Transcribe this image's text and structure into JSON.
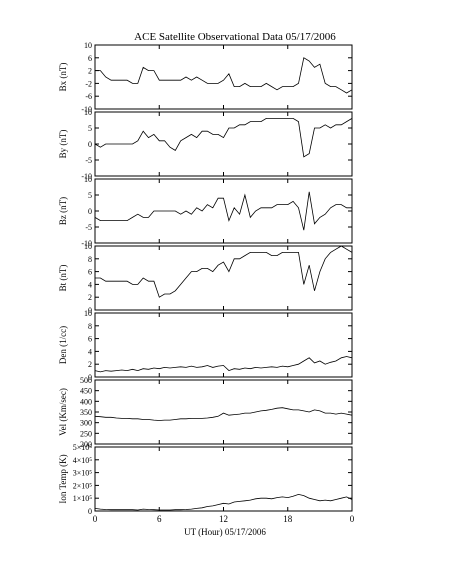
{
  "chart_data": [
    {
      "type": "line",
      "title": "ACE Satellite Observational Data   05/17/2006",
      "ylabel": "Bx (nT)",
      "ylim": [
        -10,
        10
      ],
      "yticks": [
        -10,
        -6,
        -2,
        2,
        6,
        10
      ],
      "xlim": [
        0,
        24
      ],
      "x": [
        0,
        0.5,
        1,
        1.5,
        2,
        2.5,
        3,
        3.5,
        4,
        4.5,
        5,
        5.5,
        6,
        6.5,
        7,
        7.5,
        8,
        8.5,
        9,
        9.5,
        10,
        10.5,
        11,
        11.5,
        12,
        12.5,
        13,
        13.5,
        14,
        14.5,
        15,
        15.5,
        16,
        16.5,
        17,
        17.5,
        18,
        18.5,
        19,
        19.5,
        20,
        20.5,
        21,
        21.5,
        22,
        22.5,
        23,
        23.5,
        24
      ],
      "values": [
        2,
        2,
        0,
        -1,
        -1,
        -1,
        -1,
        -2,
        -2,
        3,
        2,
        2,
        -1,
        -1,
        -1,
        -1,
        -1,
        0,
        -1,
        0,
        -1,
        -2,
        -2,
        -2,
        -1,
        1,
        -3,
        -3,
        -2,
        -3,
        -3,
        -3,
        -2,
        -3,
        -4,
        -3,
        -3,
        -3,
        -2,
        6,
        5,
        3,
        4,
        -2,
        -3,
        -3,
        -4,
        -5,
        -4
      ]
    },
    {
      "type": "line",
      "ylabel": "By (nT)",
      "ylim": [
        -10,
        10
      ],
      "yticks": [
        -10,
        -5,
        0,
        5,
        10
      ],
      "xlim": [
        0,
        24
      ],
      "x": [
        0,
        0.5,
        1,
        1.5,
        2,
        2.5,
        3,
        3.5,
        4,
        4.5,
        5,
        5.5,
        6,
        6.5,
        7,
        7.5,
        8,
        8.5,
        9,
        9.5,
        10,
        10.5,
        11,
        11.5,
        12,
        12.5,
        13,
        13.5,
        14,
        14.5,
        15,
        15.5,
        16,
        16.5,
        17,
        17.5,
        18,
        18.5,
        19,
        19.5,
        20,
        20.5,
        21,
        21.5,
        22,
        22.5,
        23,
        23.5,
        24
      ],
      "values": [
        0,
        -1,
        0,
        0,
        0,
        0,
        0,
        0,
        1,
        4,
        2,
        3,
        1,
        1,
        -1,
        -2,
        1,
        2,
        3,
        2,
        4,
        4,
        3,
        3,
        2,
        5,
        5,
        6,
        6,
        7,
        7,
        7,
        8,
        8,
        8,
        8,
        8,
        8,
        7,
        -4,
        -3,
        5,
        5,
        6,
        5,
        6,
        6,
        7,
        8
      ]
    },
    {
      "type": "line",
      "ylabel": "Bz (nT)",
      "ylim": [
        -10,
        10
      ],
      "yticks": [
        -10,
        -5,
        0,
        5,
        10
      ],
      "xlim": [
        0,
        24
      ],
      "x": [
        0,
        0.5,
        1,
        1.5,
        2,
        2.5,
        3,
        3.5,
        4,
        4.5,
        5,
        5.5,
        6,
        6.5,
        7,
        7.5,
        8,
        8.5,
        9,
        9.5,
        10,
        10.5,
        11,
        11.5,
        12,
        12.5,
        13,
        13.5,
        14,
        14.5,
        15,
        15.5,
        16,
        16.5,
        17,
        17.5,
        18,
        18.5,
        19,
        19.5,
        20,
        20.5,
        21,
        21.5,
        22,
        22.5,
        23,
        23.5,
        24
      ],
      "values": [
        -2,
        -3,
        -3,
        -3,
        -3,
        -3,
        -3,
        -2,
        -1,
        -2,
        -2,
        0,
        0,
        0,
        0,
        0,
        -1,
        0,
        -1,
        1,
        0,
        2,
        1,
        4,
        4,
        -3,
        1,
        -1,
        5,
        -2,
        0,
        1,
        1,
        1,
        2,
        2,
        2,
        3,
        1,
        -6,
        6,
        -4,
        -2,
        -1,
        1,
        2,
        2,
        1,
        1
      ]
    },
    {
      "type": "line",
      "ylabel": "Bt (nT)",
      "ylim": [
        0,
        10
      ],
      "yticks": [
        0,
        2,
        4,
        6,
        8,
        10
      ],
      "xlim": [
        0,
        24
      ],
      "x": [
        0,
        0.5,
        1,
        1.5,
        2,
        2.5,
        3,
        3.5,
        4,
        4.5,
        5,
        5.5,
        6,
        6.5,
        7,
        7.5,
        8,
        8.5,
        9,
        9.5,
        10,
        10.5,
        11,
        11.5,
        12,
        12.5,
        13,
        13.5,
        14,
        14.5,
        15,
        15.5,
        16,
        16.5,
        17,
        17.5,
        18,
        18.5,
        19,
        19.5,
        20,
        20.5,
        21,
        21.5,
        22,
        22.5,
        23,
        23.5,
        24
      ],
      "values": [
        5,
        5,
        4.5,
        4.5,
        4.5,
        4.5,
        4.5,
        4,
        4,
        5,
        4.5,
        4.5,
        2,
        2.5,
        2.5,
        3,
        4,
        5,
        6,
        6,
        6.5,
        6.5,
        6,
        7,
        7.5,
        6,
        8,
        8,
        8.5,
        9,
        9,
        9,
        9,
        8.5,
        8.5,
        9,
        9,
        9,
        9,
        4,
        7,
        3,
        6,
        8,
        9,
        9.5,
        10,
        9.5,
        9
      ]
    },
    {
      "type": "line",
      "ylabel": "Den (1/cc)",
      "ylim": [
        0,
        10
      ],
      "yticks": [
        0,
        2,
        4,
        6,
        8,
        10
      ],
      "xlim": [
        0,
        24
      ],
      "x": [
        0,
        0.5,
        1,
        1.5,
        2,
        2.5,
        3,
        3.5,
        4,
        4.5,
        5,
        5.5,
        6,
        6.5,
        7,
        7.5,
        8,
        8.5,
        9,
        9.5,
        10,
        10.5,
        11,
        11.5,
        12,
        12.5,
        13,
        13.5,
        14,
        14.5,
        15,
        15.5,
        16,
        16.5,
        17,
        17.5,
        18,
        18.5,
        19,
        19.5,
        20,
        20.5,
        21,
        21.5,
        22,
        22.5,
        23,
        23.5,
        24
      ],
      "values": [
        1,
        0.8,
        1,
        0.9,
        1,
        1.1,
        1,
        1.2,
        1,
        1.3,
        1.2,
        1.4,
        1.3,
        1.5,
        1.4,
        1.5,
        1.6,
        1.5,
        1.7,
        1.5,
        1.6,
        1.8,
        1.5,
        1.7,
        1.8,
        1,
        1.3,
        1.2,
        1.4,
        1.3,
        1.5,
        1.4,
        1.5,
        1.6,
        1.5,
        1.7,
        1.6,
        1.8,
        2,
        2.5,
        3,
        2.2,
        2.5,
        2,
        2.3,
        2.5,
        3,
        3.2,
        3
      ]
    },
    {
      "type": "line",
      "ylabel": "Vel (Km/sec)",
      "ylim": [
        200,
        500
      ],
      "yticks": [
        200,
        250,
        300,
        350,
        400,
        450,
        500
      ],
      "xlim": [
        0,
        24
      ],
      "x": [
        0,
        0.5,
        1,
        1.5,
        2,
        2.5,
        3,
        3.5,
        4,
        4.5,
        5,
        5.5,
        6,
        6.5,
        7,
        7.5,
        8,
        8.5,
        9,
        9.5,
        10,
        10.5,
        11,
        11.5,
        12,
        12.5,
        13,
        13.5,
        14,
        14.5,
        15,
        15.5,
        16,
        16.5,
        17,
        17.5,
        18,
        18.5,
        19,
        19.5,
        20,
        20.5,
        21,
        21.5,
        22,
        22.5,
        23,
        23.5,
        24
      ],
      "values": [
        330,
        328,
        325,
        325,
        322,
        320,
        320,
        318,
        318,
        315,
        315,
        312,
        310,
        312,
        312,
        315,
        318,
        318,
        320,
        320,
        320,
        322,
        325,
        330,
        345,
        335,
        338,
        340,
        345,
        345,
        350,
        355,
        358,
        362,
        368,
        370,
        365,
        360,
        360,
        355,
        350,
        360,
        355,
        345,
        345,
        340,
        345,
        340,
        335
      ]
    },
    {
      "type": "line",
      "ylabel": "Ion Temp (K)",
      "xlabel": "UT (Hour)   05/17/2006",
      "ylim": [
        0,
        500000
      ],
      "yticks": [
        0,
        {
          "value": 100000,
          "label": "1×10⁵"
        },
        {
          "value": 200000,
          "label": "2×10⁵"
        },
        {
          "value": 300000,
          "label": "3×10⁵"
        },
        {
          "value": 400000,
          "label": "4×10⁵"
        },
        {
          "value": 500000,
          "label": "5×10⁵"
        }
      ],
      "xlim": [
        0,
        24
      ],
      "xticks": [
        0,
        6,
        12,
        18,
        {
          "value": 24,
          "label": "0"
        }
      ],
      "x": [
        0,
        0.5,
        1,
        1.5,
        2,
        2.5,
        3,
        3.5,
        4,
        4.5,
        5,
        5.5,
        6,
        6.5,
        7,
        7.5,
        8,
        8.5,
        9,
        9.5,
        10,
        10.5,
        11,
        11.5,
        12,
        12.5,
        13,
        13.5,
        14,
        14.5,
        15,
        15.5,
        16,
        16.5,
        17,
        17.5,
        18,
        18.5,
        19,
        19.5,
        20,
        20.5,
        21,
        21.5,
        22,
        22.5,
        23,
        23.5,
        24
      ],
      "values": [
        20000,
        15000,
        12000,
        10000,
        10000,
        10000,
        10000,
        10000,
        8000,
        15000,
        12000,
        10000,
        8000,
        8000,
        8000,
        10000,
        10000,
        12000,
        15000,
        20000,
        25000,
        35000,
        40000,
        50000,
        60000,
        55000,
        70000,
        75000,
        80000,
        85000,
        95000,
        100000,
        100000,
        95000,
        105000,
        110000,
        105000,
        115000,
        130000,
        120000,
        100000,
        90000,
        80000,
        85000,
        80000,
        90000,
        100000,
        110000,
        90000
      ]
    }
  ]
}
